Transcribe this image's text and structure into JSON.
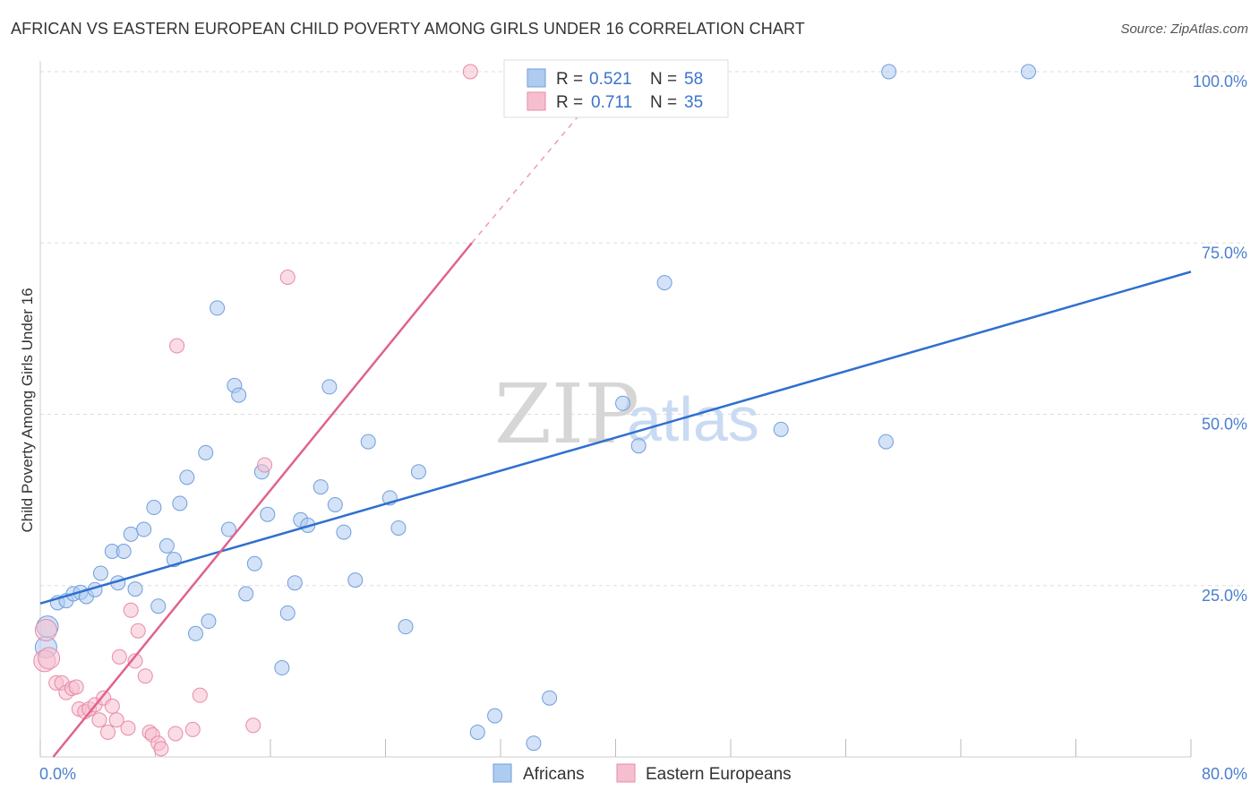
{
  "header": {
    "title": "AFRICAN VS EASTERN EUROPEAN CHILD POVERTY AMONG GIRLS UNDER 16 CORRELATION CHART",
    "source": "Source: ZipAtlas.com"
  },
  "watermark": {
    "zip": "ZIP",
    "atlas": "atlas"
  },
  "legend": {
    "africans": {
      "r_label": "R =",
      "r_value": "0.521",
      "n_label": "N =",
      "n_value": "58"
    },
    "eastern": {
      "r_label": "R =",
      "r_value": "0.711",
      "n_label": "N =",
      "n_value": "35"
    }
  },
  "bottom_legend": {
    "africans": "Africans",
    "eastern": "Eastern Europeans"
  },
  "colors": {
    "africans_fill": "#aecbf0",
    "africans_stroke": "#6f9fdc",
    "africans_line": "#2f6fcf",
    "eastern_fill": "#f6bfcf",
    "eastern_stroke": "#e88aa8",
    "eastern_line": "#e0628d",
    "tick_text": "#4a7fcf",
    "grid": "#dddddd"
  },
  "chart_data": {
    "type": "scatter",
    "title": "AFRICAN VS EASTERN EUROPEAN CHILD POVERTY AMONG GIRLS UNDER 16 CORRELATION CHART",
    "xlabel": "",
    "ylabel": "Child Poverty Among Girls Under 16",
    "xlim": [
      0,
      80
    ],
    "ylim": [
      0,
      100
    ],
    "x_tick_labels": [
      "0.0%",
      "80.0%"
    ],
    "y_tick_labels": [
      "25.0%",
      "50.0%",
      "75.0%",
      "100.0%"
    ],
    "y_ticks": [
      25,
      50,
      75,
      100
    ],
    "grid": true,
    "legend_position": "top-center",
    "series": [
      {
        "name": "Africans",
        "r": 0.521,
        "n": 58,
        "trend": {
          "x": [
            0,
            80
          ],
          "y": [
            22.4,
            70.8
          ],
          "dashed_to": null
        },
        "points": [
          [
            0.4,
            16.0
          ],
          [
            0.5,
            19.0
          ],
          [
            1.2,
            22.5
          ],
          [
            1.8,
            22.8
          ],
          [
            2.3,
            23.8
          ],
          [
            2.8,
            24.0
          ],
          [
            3.2,
            23.4
          ],
          [
            3.8,
            24.4
          ],
          [
            4.2,
            26.8
          ],
          [
            5.0,
            30.0
          ],
          [
            5.4,
            25.4
          ],
          [
            5.8,
            30.0
          ],
          [
            6.3,
            32.5
          ],
          [
            6.6,
            24.5
          ],
          [
            7.2,
            33.2
          ],
          [
            7.9,
            36.4
          ],
          [
            8.2,
            22.0
          ],
          [
            8.8,
            30.8
          ],
          [
            9.3,
            28.8
          ],
          [
            9.7,
            37.0
          ],
          [
            10.2,
            40.8
          ],
          [
            10.8,
            18.0
          ],
          [
            11.5,
            44.4
          ],
          [
            11.7,
            19.8
          ],
          [
            12.3,
            65.5
          ],
          [
            13.1,
            33.2
          ],
          [
            13.5,
            54.2
          ],
          [
            13.8,
            52.8
          ],
          [
            14.3,
            23.8
          ],
          [
            14.9,
            28.2
          ],
          [
            15.4,
            41.6
          ],
          [
            15.8,
            35.4
          ],
          [
            16.8,
            13.0
          ],
          [
            17.2,
            21.0
          ],
          [
            17.7,
            25.4
          ],
          [
            18.1,
            34.6
          ],
          [
            18.6,
            33.8
          ],
          [
            19.5,
            39.4
          ],
          [
            20.1,
            54.0
          ],
          [
            20.5,
            36.8
          ],
          [
            21.1,
            32.8
          ],
          [
            21.9,
            25.8
          ],
          [
            22.8,
            46.0
          ],
          [
            24.3,
            37.8
          ],
          [
            24.9,
            33.4
          ],
          [
            25.4,
            19.0
          ],
          [
            26.3,
            41.6
          ],
          [
            30.4,
            3.6
          ],
          [
            31.6,
            6.0
          ],
          [
            34.3,
            2.0
          ],
          [
            35.4,
            8.6
          ],
          [
            40.5,
            51.6
          ],
          [
            41.6,
            45.4
          ],
          [
            43.4,
            69.2
          ],
          [
            51.5,
            47.8
          ],
          [
            58.8,
            46.0
          ],
          [
            59.0,
            100.0
          ],
          [
            68.7,
            100.0
          ]
        ]
      },
      {
        "name": "Eastern Europeans",
        "r": 0.711,
        "n": 35,
        "trend": {
          "x": [
            0.9,
            30.0
          ],
          "y": [
            0.0,
            75.0
          ],
          "dashed_to": [
            38.0,
            95.0
          ]
        },
        "points": [
          [
            0.3,
            14.0
          ],
          [
            0.4,
            18.5
          ],
          [
            0.6,
            14.4
          ],
          [
            1.1,
            10.8
          ],
          [
            1.5,
            10.8
          ],
          [
            1.8,
            9.4
          ],
          [
            2.2,
            10.0
          ],
          [
            2.5,
            10.2
          ],
          [
            2.7,
            7.0
          ],
          [
            3.1,
            6.6
          ],
          [
            3.4,
            7.0
          ],
          [
            3.8,
            7.6
          ],
          [
            4.1,
            5.4
          ],
          [
            4.4,
            8.6
          ],
          [
            4.7,
            3.6
          ],
          [
            5.0,
            7.4
          ],
          [
            5.3,
            5.4
          ],
          [
            5.5,
            14.6
          ],
          [
            6.1,
            4.2
          ],
          [
            6.3,
            21.4
          ],
          [
            6.6,
            14.0
          ],
          [
            6.8,
            18.4
          ],
          [
            7.3,
            11.8
          ],
          [
            7.6,
            3.6
          ],
          [
            7.8,
            3.2
          ],
          [
            8.2,
            2.0
          ],
          [
            8.4,
            1.2
          ],
          [
            9.4,
            3.4
          ],
          [
            9.5,
            60.0
          ],
          [
            10.6,
            4.0
          ],
          [
            11.1,
            9.0
          ],
          [
            14.8,
            4.6
          ],
          [
            15.6,
            42.6
          ],
          [
            17.2,
            70.0
          ],
          [
            29.9,
            100.0
          ]
        ]
      }
    ]
  }
}
